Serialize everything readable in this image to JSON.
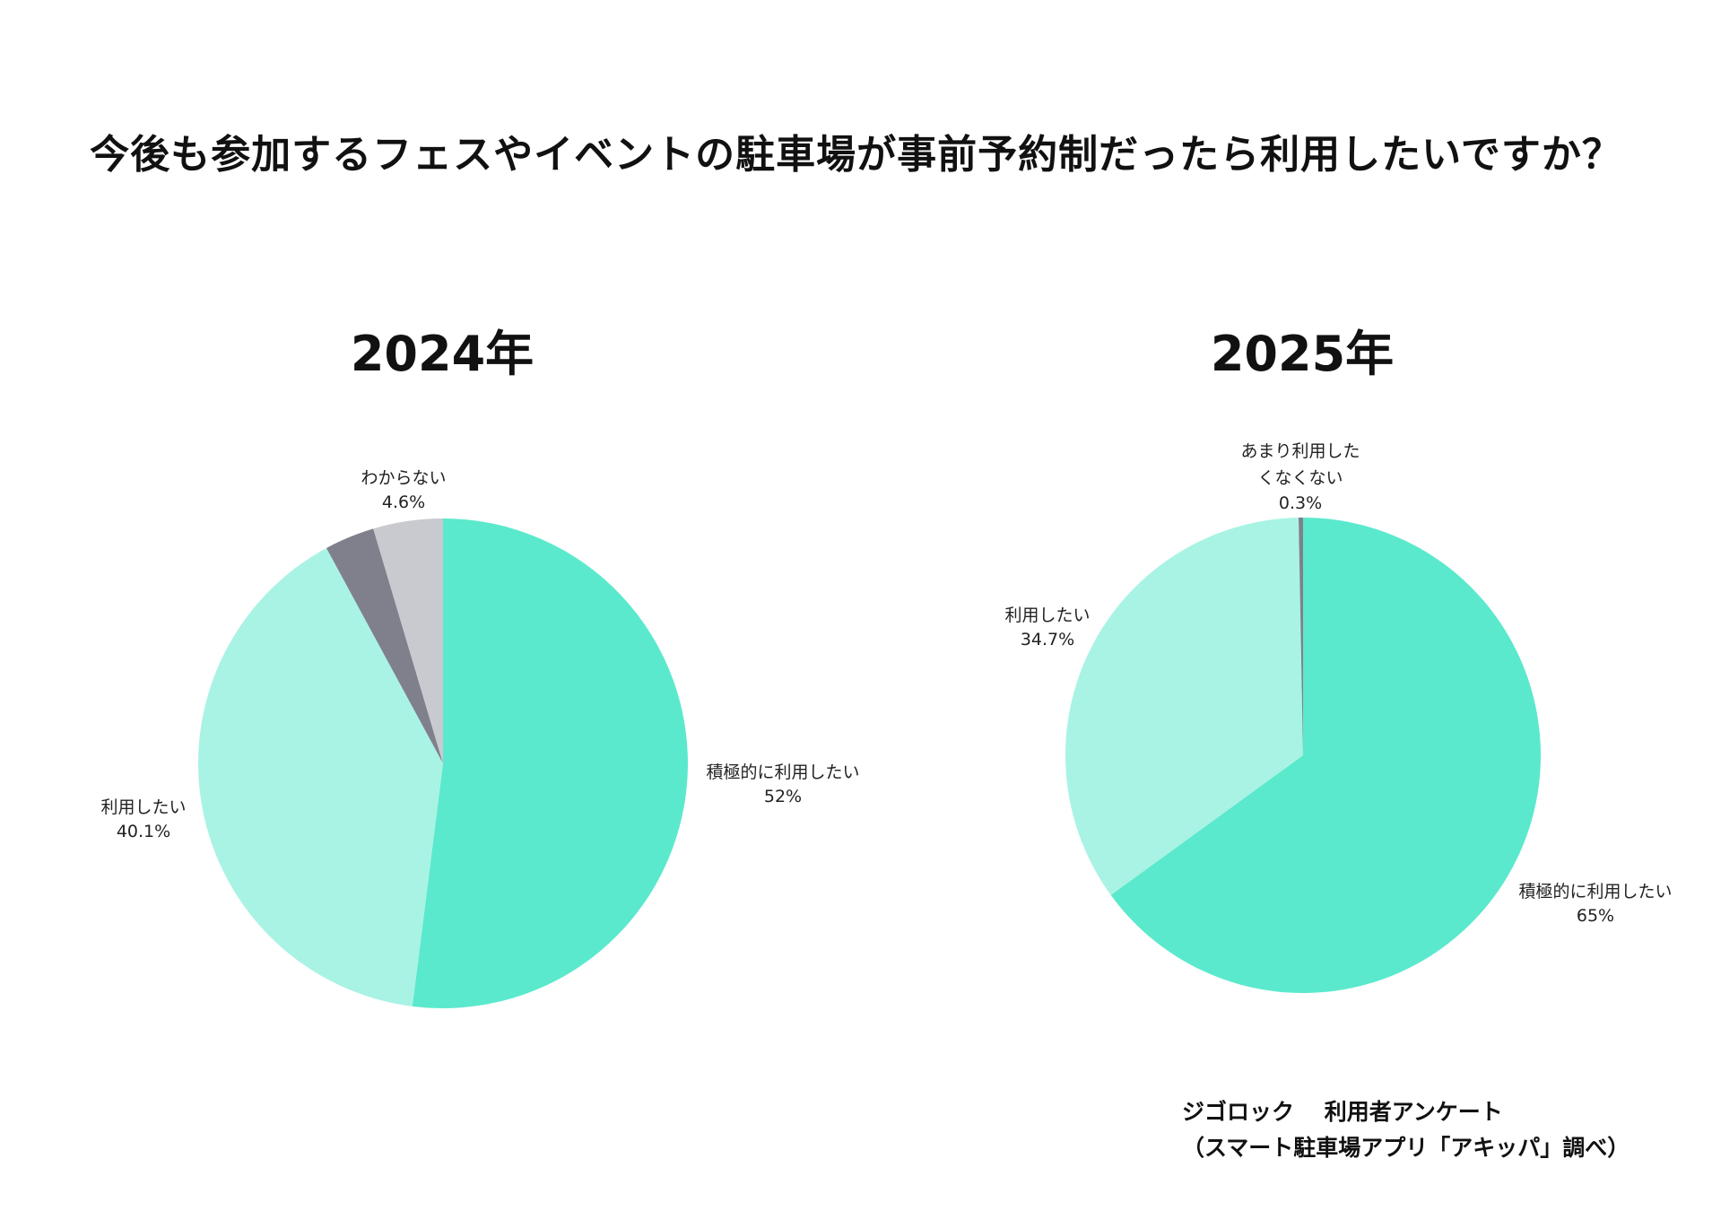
{
  "title": "今後も参加するフェスやイベントの駐車場が事前予約制だったら利用したいですか？",
  "source": {
    "line1": "ジゴロック　 利用者アンケート",
    "line2": "（スマート駐車場アプリ「アキッパ」調べ）"
  },
  "chart_data": [
    {
      "type": "pie",
      "title": "2024年",
      "start": "12 o'clock, clockwise",
      "slices": [
        {
          "label": "積極的に利用したい",
          "value": 52,
          "value_label": "52%",
          "color": "#5BE9CD"
        },
        {
          "label": "利用したい",
          "value": 40.1,
          "value_label": "40.1%",
          "color": "#A9F3E4"
        },
        {
          "label": "",
          "value": 3.3,
          "value_label": "",
          "color": "#80808D"
        },
        {
          "label": "わからない",
          "value": 4.6,
          "value_label": "4.6%",
          "color": "#C9CAD0"
        }
      ]
    },
    {
      "type": "pie",
      "title": "2025年",
      "start": "12 o'clock, clockwise",
      "slices": [
        {
          "label": "積極的に利用したい",
          "value": 65,
          "value_label": "65%",
          "color": "#5BE9CD"
        },
        {
          "label": "利用したい",
          "value": 34.7,
          "value_label": "34.7%",
          "color": "#A9F3E4"
        },
        {
          "label": "あまり利用したくなくない",
          "label_lines": [
            "あまり利用した",
            "くなくない"
          ],
          "value": 0.3,
          "value_label": "0.3%",
          "color": "#80808D"
        }
      ]
    }
  ]
}
